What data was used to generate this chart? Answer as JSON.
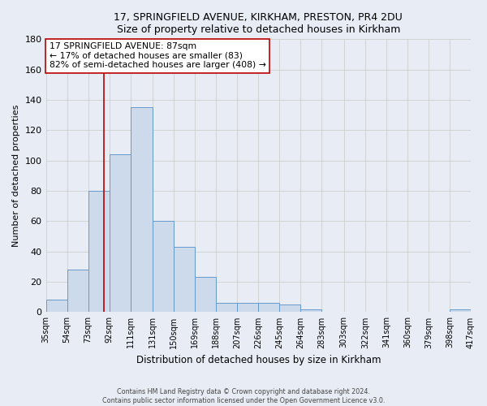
{
  "title1": "17, SPRINGFIELD AVENUE, KIRKHAM, PRESTON, PR4 2DU",
  "title2": "Size of property relative to detached houses in Kirkham",
  "xlabel": "Distribution of detached houses by size in Kirkham",
  "ylabel": "Number of detached properties",
  "bin_edges": [
    35,
    54,
    73,
    92,
    111,
    131,
    150,
    169,
    188,
    207,
    226,
    245,
    264,
    283,
    303,
    322,
    341,
    360,
    379,
    398,
    417
  ],
  "bar_heights": [
    8,
    28,
    80,
    104,
    135,
    60,
    43,
    23,
    6,
    6,
    6,
    5,
    2,
    0,
    0,
    0,
    0,
    0,
    0,
    2
  ],
  "bar_facecolor": "#ccdaec",
  "bar_edgecolor": "#6699cc",
  "bar_linewidth": 0.7,
  "grid_color": "#c8c8c8",
  "background_color": "#e8edf5",
  "property_size": 87,
  "redline_color": "#bb0000",
  "annotation_line1": "17 SPRINGFIELD AVENUE: 87sqm",
  "annotation_line2": "← 17% of detached houses are smaller (83)",
  "annotation_line3": "82% of semi-detached houses are larger (408) →",
  "annotation_boxcolor": "white",
  "annotation_edgecolor": "#bb0000",
  "ylim": [
    0,
    180
  ],
  "yticks": [
    0,
    20,
    40,
    60,
    80,
    100,
    120,
    140,
    160,
    180
  ],
  "footer1": "Contains HM Land Registry data © Crown copyright and database right 2024.",
  "footer2": "Contains public sector information licensed under the Open Government Licence v3.0."
}
